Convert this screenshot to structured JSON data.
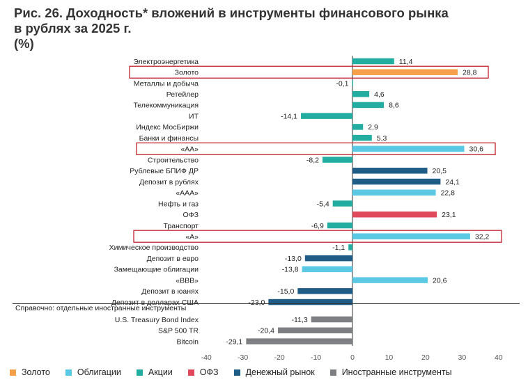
{
  "title": {
    "line1": "Рис. 26. Доходность* вложений в инструменты финансового рынка",
    "line2": "в рублях за 2025 г.",
    "line3": "(%)"
  },
  "colors": {
    "gold": "#F5A04A",
    "bonds": "#5BC9E4",
    "stocks": "#23ADA0",
    "ofz": "#E0485B",
    "money": "#1F5D86",
    "foreign": "#7E7F82",
    "highlight": "#C0232C"
  },
  "chart_data": {
    "type": "bar",
    "orientation": "horizontal",
    "xlim": [
      -40,
      40
    ],
    "xticks": [
      -40,
      -30,
      -20,
      -10,
      0,
      10,
      20,
      30,
      40
    ],
    "rows": [
      {
        "label": "Электроэнергетика",
        "value": 11.4,
        "text": "11,4",
        "group": "stocks"
      },
      {
        "label": "Золото",
        "value": 28.8,
        "text": "28,8",
        "group": "gold",
        "highlight": true
      },
      {
        "label": "Металлы и добыча",
        "value": -0.1,
        "text": "-0,1",
        "group": "stocks"
      },
      {
        "label": "Ретейлер",
        "value": 4.6,
        "text": "4,6",
        "group": "stocks"
      },
      {
        "label": "Телекоммуникация",
        "value": 8.6,
        "text": "8,6",
        "group": "stocks"
      },
      {
        "label": "ИТ",
        "value": -14.1,
        "text": "-14,1",
        "group": "stocks"
      },
      {
        "label": "Индекс МосБиржи",
        "value": 2.9,
        "text": "2,9",
        "group": "stocks"
      },
      {
        "label": "Банки и финансы",
        "value": 5.3,
        "text": "5,3",
        "group": "stocks"
      },
      {
        "label": "«АА»",
        "value": 30.6,
        "text": "30,6",
        "group": "bonds",
        "highlight": true
      },
      {
        "label": "Строительство",
        "value": -8.2,
        "text": "-8,2",
        "group": "stocks"
      },
      {
        "label": "Рублевые БПИФ ДР",
        "value": 20.5,
        "text": "20,5",
        "group": "money"
      },
      {
        "label": "Депозит в рублях",
        "value": 24.1,
        "text": "24,1",
        "group": "money"
      },
      {
        "label": "«ААА»",
        "value": 22.8,
        "text": "22,8",
        "group": "bonds"
      },
      {
        "label": "Нефть и газ",
        "value": -5.4,
        "text": "-5,4",
        "group": "stocks"
      },
      {
        "label": "ОФЗ",
        "value": 23.1,
        "text": "23,1",
        "group": "ofz"
      },
      {
        "label": "Транспорт",
        "value": -6.9,
        "text": "-6,9",
        "group": "stocks"
      },
      {
        "label": "«А»",
        "value": 32.2,
        "text": "32,2",
        "group": "bonds",
        "highlight": true
      },
      {
        "label": "Химическое производство",
        "value": -1.1,
        "text": "-1,1",
        "group": "stocks"
      },
      {
        "label": "Депозит в евро",
        "value": -13.0,
        "text": "-13,0",
        "group": "money"
      },
      {
        "label": "Замещающие облигации",
        "value": -13.8,
        "text": "-13,8",
        "group": "bonds"
      },
      {
        "label": "«ВВВ»",
        "value": 20.6,
        "text": "20,6",
        "group": "bonds"
      },
      {
        "label": "Депозит в юанях",
        "value": -15.0,
        "text": "-15,0",
        "group": "money"
      },
      {
        "label": "Депозит в долларах США",
        "value": -23.0,
        "text": "-23,0",
        "group": "money"
      }
    ],
    "reference_note": "Справочно:  отдельные иностранные инструменты",
    "reference_rows": [
      {
        "label": "U.S. Treasury Bond Index",
        "value": -11.3,
        "text": "-11,3",
        "group": "foreign"
      },
      {
        "label": "S&P 500 TR",
        "value": -20.4,
        "text": "-20,4",
        "group": "foreign"
      },
      {
        "label": "Bitcoin",
        "value": -29.1,
        "text": "-29,1",
        "group": "foreign"
      }
    ],
    "legend": [
      {
        "key": "gold",
        "label": "Золото"
      },
      {
        "key": "bonds",
        "label": "Облигации"
      },
      {
        "key": "stocks",
        "label": "Акции"
      },
      {
        "key": "ofz",
        "label": "ОФЗ"
      },
      {
        "key": "money",
        "label": "Денежный рынок"
      },
      {
        "key": "foreign",
        "label": "Иностранные инструменты"
      }
    ]
  }
}
